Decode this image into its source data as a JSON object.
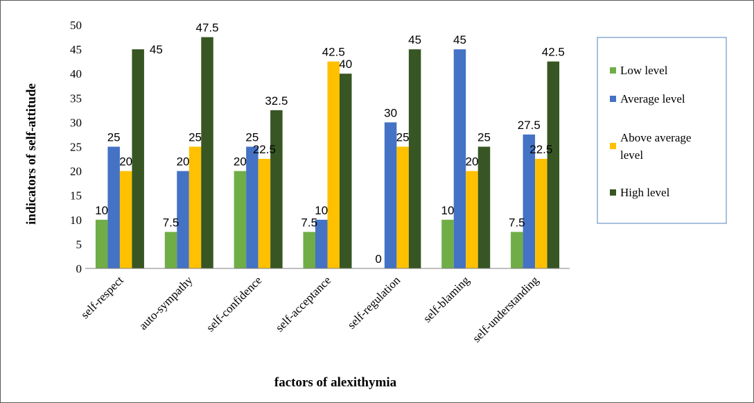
{
  "chart_data": {
    "type": "bar",
    "title": "",
    "xlabel": "factors of alexithymia",
    "ylabel": "indicators of self-attitude",
    "categories": [
      "self-respect",
      "auto-sympathy",
      "self-confidence",
      "self-acceptance",
      "self-regulation",
      "self-blaming",
      "self-understanding"
    ],
    "series": [
      {
        "name": "Low level",
        "color": "#70ad47",
        "values": [
          10,
          7.5,
          20,
          7.5,
          0,
          10,
          7.5
        ]
      },
      {
        "name": "Average level",
        "color": "#4472c4",
        "values": [
          25,
          20,
          25,
          10,
          30,
          45,
          27.5
        ]
      },
      {
        "name": "Above average level",
        "color": "#ffc000",
        "values": [
          20,
          25,
          22.5,
          42.5,
          25,
          20,
          22.5
        ]
      },
      {
        "name": "High level",
        "color": "#375623",
        "values": [
          45,
          47.5,
          32.5,
          40,
          45,
          25,
          42.5
        ]
      }
    ],
    "ylim": [
      0,
      50
    ],
    "yticks": [
      0,
      5,
      10,
      15,
      20,
      25,
      30,
      35,
      40,
      45,
      50
    ],
    "grid": false,
    "legend": "right",
    "data_labels": true
  }
}
